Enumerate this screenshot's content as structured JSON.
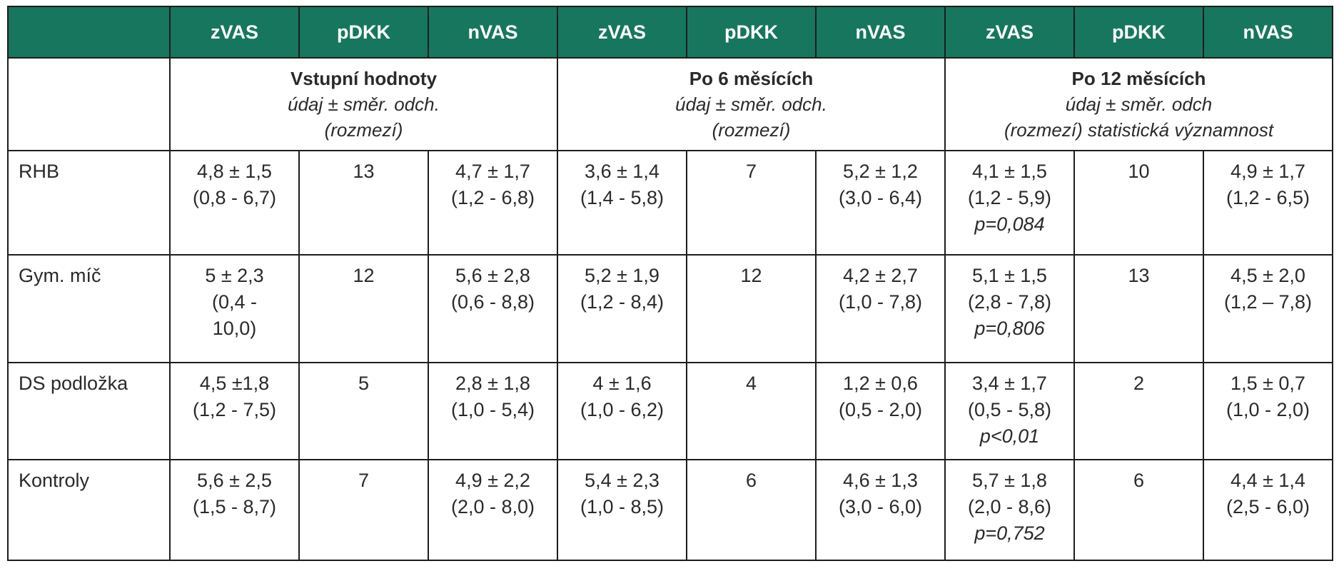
{
  "header": [
    "",
    "zVAS",
    "pDKK",
    "nVAS",
    "zVAS",
    "pDKK",
    "nVAS",
    "zVAS",
    "pDKK",
    "nVAS"
  ],
  "groups": [
    {
      "title": "Vstupní hodnoty",
      "sub1": "údaj ± směr. odch.",
      "sub2": "(rozmezí)"
    },
    {
      "title": "Po 6 měsících",
      "sub1": "údaj ± směr. odch.",
      "sub2": "(rozmezí)"
    },
    {
      "title": "Po 12 měsících",
      "sub1": "údaj ± směr. odch",
      "sub2": "(rozmezí) statistická významnost"
    }
  ],
  "rows": [
    {
      "label": "RHB",
      "cells": [
        {
          "lines": [
            "4,8 ± 1,5",
            "(0,8 - 6,7)"
          ]
        },
        {
          "lines": [
            "13"
          ]
        },
        {
          "lines": [
            "4,7 ± 1,7",
            "(1,2 - 6,8)"
          ]
        },
        {
          "lines": [
            "3,6 ± 1,4",
            "(1,4 - 5,8)"
          ]
        },
        {
          "lines": [
            "7"
          ]
        },
        {
          "lines": [
            "5,2 ± 1,2",
            "(3,0 - 6,4)"
          ]
        },
        {
          "lines": [
            "4,1 ± 1,5",
            "(1,2 - 5,9)"
          ],
          "p": "p=0,084"
        },
        {
          "lines": [
            "10"
          ]
        },
        {
          "lines": [
            "4,9 ± 1,7",
            "(1,2 - 6,5)"
          ]
        }
      ]
    },
    {
      "label": "Gym. míč",
      "cells": [
        {
          "lines": [
            "5 ± 2,3",
            "(0,4 -",
            "10,0)"
          ]
        },
        {
          "lines": [
            "12"
          ]
        },
        {
          "lines": [
            "5,6 ± 2,8",
            "(0,6 - 8,8)"
          ]
        },
        {
          "lines": [
            "5,2 ± 1,9",
            "(1,2 - 8,4)"
          ]
        },
        {
          "lines": [
            "12"
          ]
        },
        {
          "lines": [
            "4,2 ± 2,7",
            "(1,0 - 7,8)"
          ]
        },
        {
          "lines": [
            "5,1 ± 1,5",
            "(2,8 - 7,8)"
          ],
          "p": "p=0,806"
        },
        {
          "lines": [
            "13"
          ]
        },
        {
          "lines": [
            "4,5 ± 2,0",
            "(1,2 – 7,8)"
          ]
        }
      ]
    },
    {
      "label": "DS podložka",
      "cells": [
        {
          "lines": [
            "4,5 ±1,8",
            "(1,2 - 7,5)"
          ]
        },
        {
          "lines": [
            "5"
          ]
        },
        {
          "lines": [
            "2,8 ± 1,8",
            "(1,0 - 5,4)"
          ]
        },
        {
          "lines": [
            "4 ± 1,6",
            "(1,0 - 6,2)"
          ]
        },
        {
          "lines": [
            "4"
          ]
        },
        {
          "lines": [
            "1,2 ± 0,6",
            "(0,5 - 2,0)"
          ]
        },
        {
          "lines": [
            "3,4 ± 1,7",
            "(0,5 - 5,8)"
          ],
          "p": "p<0,01"
        },
        {
          "lines": [
            "2"
          ]
        },
        {
          "lines": [
            "1,5 ± 0,7",
            "(1,0 - 2,0)"
          ]
        }
      ]
    },
    {
      "label": "Kontroly",
      "cells": [
        {
          "lines": [
            "5,6 ± 2,5",
            "(1,5 - 8,7)"
          ]
        },
        {
          "lines": [
            "7"
          ]
        },
        {
          "lines": [
            "4,9 ± 2,2",
            "(2,0 - 8,0)"
          ]
        },
        {
          "lines": [
            "5,4 ± 2,3",
            "(1,0 - 8,5)"
          ]
        },
        {
          "lines": [
            "6"
          ]
        },
        {
          "lines": [
            "4,6 ± 1,3",
            "(3,0 - 6,0)"
          ]
        },
        {
          "lines": [
            "5,7 ± 1,8",
            "(2,0 - 8,6)"
          ],
          "p": "p=0,752"
        },
        {
          "lines": [
            "6"
          ]
        },
        {
          "lines": [
            "4,4 ± 1,4",
            "(2,5 - 6,0)"
          ]
        }
      ]
    }
  ],
  "colors": {
    "header_bg": "#17765e",
    "header_text": "#ffffff",
    "border": "#1d1d1d"
  }
}
